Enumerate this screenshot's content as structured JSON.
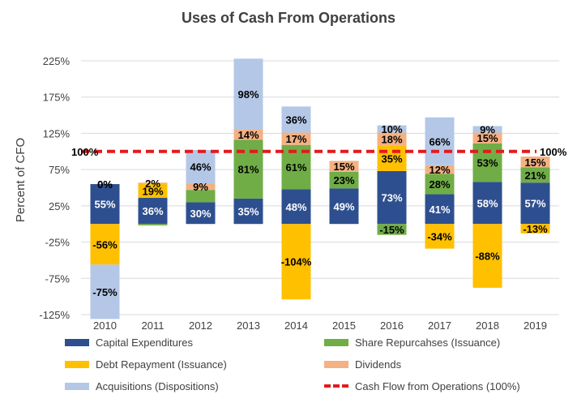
{
  "chart_data": {
    "type": "bar",
    "stacked": true,
    "title": "Uses of Cash From Operations",
    "ylabel": "Percent of CFO",
    "xlabel": "",
    "ylim": [
      -125,
      225
    ],
    "y_ticks": [
      "-125%",
      "-75%",
      "-25%",
      "25%",
      "75%",
      "125%",
      "175%",
      "225%"
    ],
    "y_tick_values": [
      -125,
      -75,
      -25,
      25,
      75,
      125,
      175,
      225
    ],
    "grid": true,
    "legend_position": "bottom",
    "categories": [
      "2010",
      "2011",
      "2012",
      "2013",
      "2014",
      "2015",
      "2016",
      "2017",
      "2018",
      "2019"
    ],
    "series": [
      {
        "name": "Capital Expenditures",
        "color": "#2e4f8f",
        "values": [
          55,
          36,
          30,
          35,
          48,
          49,
          73,
          41,
          58,
          57
        ],
        "labels": [
          "55%",
          "36%",
          "30%",
          "35%",
          "48%",
          "49%",
          "73%",
          "41%",
          "58%",
          "57%"
        ]
      },
      {
        "name": "Share Repurcahses (Issuance)",
        "color": "#70ad47",
        "values": [
          0,
          -2,
          17,
          81,
          61,
          23,
          -15,
          28,
          53,
          21
        ],
        "labels": [
          "0%",
          "",
          "",
          "81%",
          "61%",
          "23%",
          "-15%",
          "28%",
          "53%",
          "21%"
        ]
      },
      {
        "name": "Debt Repayment (Issuance)",
        "color": "#ffc000",
        "values": [
          -56,
          19,
          0,
          0,
          -104,
          0,
          35,
          -34,
          -88,
          -13
        ],
        "labels": [
          "-56%",
          "19%",
          "",
          "",
          "-104%",
          "",
          "35%",
          "-34%",
          "-88%",
          "-13%"
        ]
      },
      {
        "name": "Dividends",
        "color": "#f4b183",
        "values": [
          0,
          2,
          9,
          14,
          17,
          15,
          18,
          12,
          15,
          15
        ],
        "labels": [
          "0%",
          "2%",
          "9%",
          "14%",
          "17%",
          "15%",
          "18%",
          "12%",
          "15%",
          "15%"
        ]
      },
      {
        "name": "Acquisitions (Dispositions)",
        "color": "#b4c7e7",
        "values": [
          -75,
          0,
          46,
          98,
          36,
          0,
          10,
          66,
          9,
          0
        ],
        "labels": [
          "-75%",
          "",
          "46%",
          "98%",
          "36%",
          "",
          "10%",
          "66%",
          "9%",
          ""
        ]
      }
    ],
    "reference_line": {
      "name": "Cash Flow from Operations (100%)",
      "value": 100,
      "color": "#e31a1c",
      "left_label": "100%",
      "right_label": "100%"
    }
  }
}
